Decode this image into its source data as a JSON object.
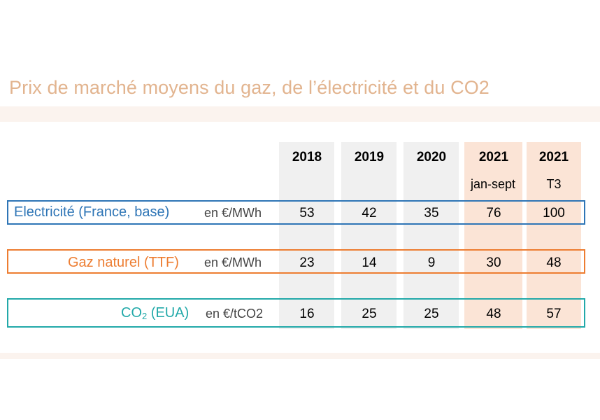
{
  "title": "Prix de marché moyens du gaz, de l’électricité et du CO2",
  "colors": {
    "title": "#e2b48f",
    "electricity": "#2e75b6",
    "gas": "#ed7d31",
    "co2": "#22a9a9",
    "grey_column": "#f0f0f0",
    "highlight_column": "#fbe4d6"
  },
  "columns": [
    {
      "year": "2018",
      "sub": ""
    },
    {
      "year": "2019",
      "sub": ""
    },
    {
      "year": "2020",
      "sub": ""
    },
    {
      "year": "2021",
      "sub": "jan-sept"
    },
    {
      "year": "2021",
      "sub": "T3"
    }
  ],
  "rows": [
    {
      "label": "Electricité (France, base)",
      "unit": "en €/MWh",
      "values": [
        "53",
        "42",
        "35",
        "76",
        "100"
      ]
    },
    {
      "label": "Gaz naturel (TTF)",
      "unit": "en €/MWh",
      "values": [
        "23",
        "14",
        "9",
        "30",
        "48"
      ]
    },
    {
      "label_main": "CO",
      "label_sub": "2",
      "label_rest": " (EUA)",
      "unit": "en €/tCO2",
      "values": [
        "16",
        "25",
        "25",
        "48",
        "57"
      ]
    }
  ]
}
